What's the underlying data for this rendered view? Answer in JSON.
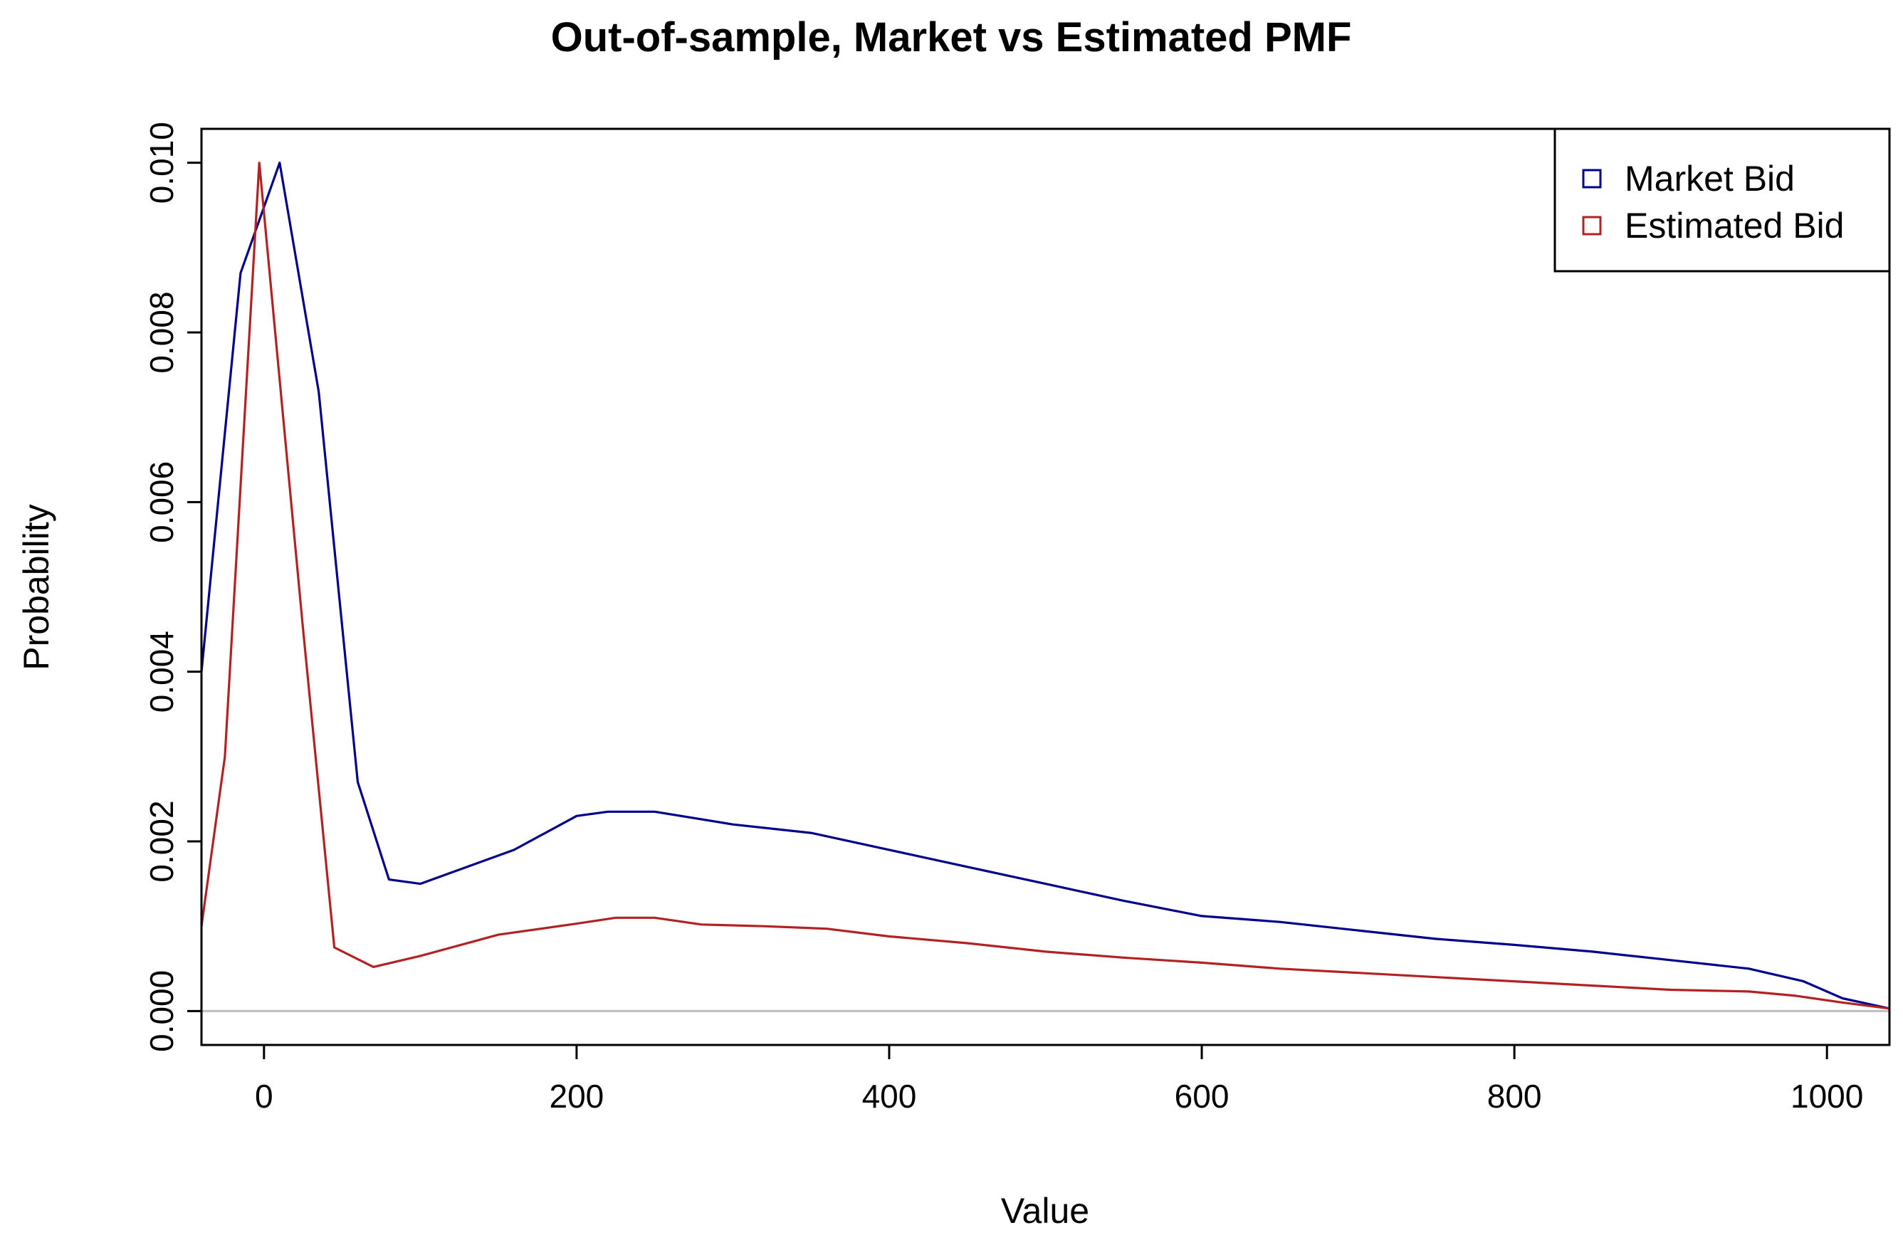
{
  "chart_data": {
    "type": "line",
    "title": "Out-of-sample, Market vs Estimated PMF",
    "xlabel": "Value",
    "ylabel": "Probability",
    "xlim": [
      -40,
      1040
    ],
    "ylim": [
      -0.0004,
      0.0104
    ],
    "x_ticks": [
      0,
      200,
      400,
      600,
      800,
      1000
    ],
    "x_tick_labels": [
      "0",
      "200",
      "400",
      "600",
      "800",
      "1000"
    ],
    "y_ticks": [
      0.0,
      0.002,
      0.004,
      0.006,
      0.008,
      0.01
    ],
    "y_tick_labels": [
      "0.000",
      "0.002",
      "0.004",
      "0.006",
      "0.008",
      "0.010"
    ],
    "grid": false,
    "reference_line": {
      "y": 0,
      "color": "#bebebe"
    },
    "legend": {
      "position": "top-right"
    },
    "series": [
      {
        "name": "Market Bid",
        "color": "#00008b",
        "x": [
          -40,
          -15,
          10,
          35,
          60,
          80,
          100,
          160,
          200,
          220,
          250,
          300,
          350,
          400,
          450,
          500,
          550,
          600,
          650,
          700,
          750,
          800,
          850,
          900,
          950,
          985,
          1010,
          1040
        ],
        "y": [
          0.004,
          0.0087,
          0.01,
          0.0073,
          0.0027,
          0.00155,
          0.0015,
          0.0019,
          0.0023,
          0.00235,
          0.00235,
          0.0022,
          0.0021,
          0.0019,
          0.0017,
          0.0015,
          0.0013,
          0.00112,
          0.00105,
          0.00095,
          0.00085,
          0.00078,
          0.0007,
          0.0006,
          0.0005,
          0.00035,
          0.00015,
          3e-05
        ]
      },
      {
        "name": "Estimated Bid",
        "color": "#b22222",
        "x": [
          -40,
          -25,
          -3,
          25,
          45,
          70,
          100,
          150,
          200,
          225,
          250,
          280,
          320,
          360,
          400,
          450,
          500,
          550,
          600,
          650,
          700,
          750,
          800,
          850,
          900,
          950,
          980,
          1010,
          1040
        ],
        "y": [
          0.001,
          0.003,
          0.01,
          0.0045,
          0.00075,
          0.00052,
          0.00065,
          0.0009,
          0.00103,
          0.0011,
          0.0011,
          0.00102,
          0.001,
          0.00097,
          0.00088,
          0.0008,
          0.0007,
          0.00063,
          0.00057,
          0.0005,
          0.00045,
          0.0004,
          0.00035,
          0.0003,
          0.00025,
          0.00023,
          0.00018,
          0.0001,
          3e-05
        ]
      }
    ]
  }
}
